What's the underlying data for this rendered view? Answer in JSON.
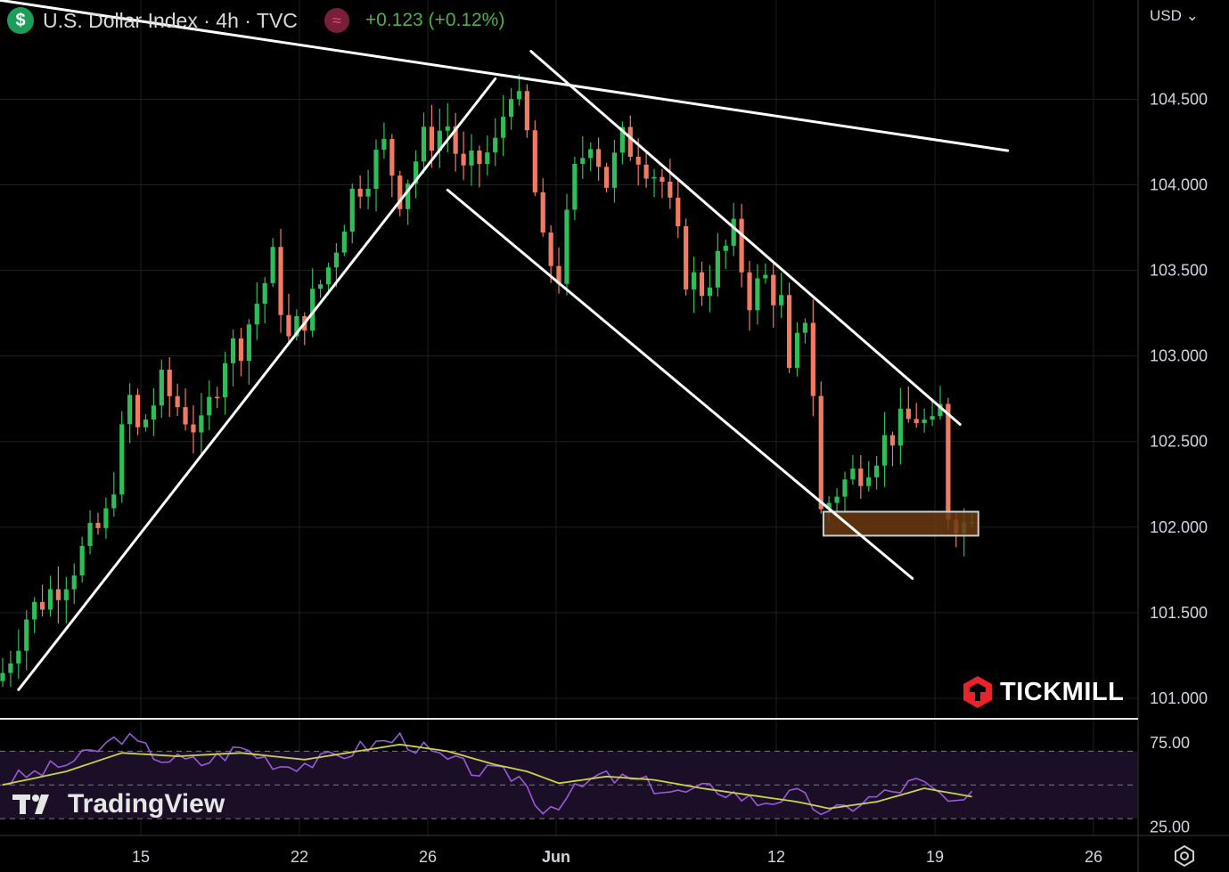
{
  "header": {
    "symbol_icon": "dollar-sign-icon",
    "symbol_glyph": "$",
    "title": "U.S. Dollar Index · 4h · TVC",
    "source_icon": "data-source-icon",
    "source_glyph": "≈",
    "change": "+0.123 (+0.12%)"
  },
  "currency_selector": "USD",
  "branding": {
    "broker": "TICKMILL",
    "platform": "TradingView"
  },
  "colors": {
    "up": "#2ebd59",
    "down": "#f07b62",
    "trendline": "#ffffff",
    "rsi": "#9b59d9",
    "rsi_ma": "#c9d34a",
    "zone_fill": "#6b3a12",
    "zone_border": "#cccccc",
    "rsi_band": "#1a0f26"
  },
  "chart_data": {
    "type": "candlestick",
    "timeframe": "4h",
    "y_axis": {
      "range": [
        100.88,
        105.08
      ],
      "ticks": [
        "104.500",
        "104.000",
        "103.500",
        "103.000",
        "102.500",
        "102.000",
        "101.500",
        "101.000"
      ]
    },
    "x_axis_labels": [
      "15",
      "22",
      "26",
      "Jun",
      "12",
      "19",
      "26"
    ],
    "path_points": [
      [
        0,
        101.15
      ],
      [
        3,
        101.48
      ],
      [
        8,
        101.72
      ],
      [
        13,
        102.05
      ],
      [
        16,
        102.75
      ],
      [
        17,
        102.55
      ],
      [
        20,
        102.82
      ],
      [
        25,
        102.55
      ],
      [
        28,
        103.02
      ],
      [
        30,
        103.08
      ],
      [
        34,
        103.55
      ],
      [
        36,
        103.08
      ],
      [
        39,
        103.32
      ],
      [
        41,
        103.52
      ],
      [
        44,
        103.95
      ],
      [
        48,
        104.22
      ],
      [
        50,
        103.95
      ],
      [
        53,
        104.25
      ],
      [
        56,
        104.35
      ],
      [
        58,
        104.05
      ],
      [
        62,
        104.22
      ],
      [
        64,
        104.6
      ],
      [
        66,
        104.28
      ],
      [
        68,
        103.62
      ],
      [
        70,
        103.48
      ],
      [
        72,
        104.05
      ],
      [
        74,
        104.3
      ],
      [
        76,
        104.02
      ],
      [
        78,
        104.25
      ],
      [
        80,
        104.2
      ],
      [
        83,
        104.02
      ],
      [
        86,
        103.48
      ],
      [
        88,
        103.4
      ],
      [
        90,
        103.55
      ],
      [
        92,
        103.7
      ],
      [
        94,
        103.35
      ],
      [
        96,
        103.45
      ],
      [
        98,
        103.3
      ],
      [
        99,
        102.85
      ],
      [
        100,
        103.05
      ],
      [
        101,
        103.25
      ],
      [
        102,
        102.8
      ],
      [
        103,
        102.08
      ],
      [
        105,
        102.22
      ],
      [
        108,
        102.35
      ],
      [
        110,
        102.45
      ],
      [
        112,
        102.55
      ],
      [
        115,
        102.65
      ],
      [
        117,
        102.55
      ],
      [
        118,
        102.68
      ],
      [
        119,
        102.1
      ],
      [
        121,
        102.02
      ],
      [
        122,
        102.12
      ]
    ],
    "trendlines": [
      {
        "name": "upper-long-resistance",
        "points": [
          [
            -0.5,
            105.08
          ],
          [
            126.5,
            104.2
          ]
        ]
      },
      {
        "name": "rising-support",
        "points": [
          [
            2.0,
            101.05
          ],
          [
            62.0,
            104.62
          ]
        ]
      },
      {
        "name": "channel-upper",
        "points": [
          [
            66.5,
            104.78
          ],
          [
            120.5,
            102.6
          ]
        ]
      },
      {
        "name": "channel-lower",
        "points": [
          [
            56.0,
            103.97
          ],
          [
            114.5,
            101.7
          ]
        ]
      }
    ],
    "support_zone": {
      "x_range": [
        103.3,
        122.8
      ],
      "y_range": [
        101.95,
        102.09
      ]
    },
    "rsi": {
      "ylim": [
        20,
        85
      ],
      "ticks": [
        "75.00",
        "25.00"
      ],
      "bands": [
        70,
        50,
        30
      ],
      "path_points": [
        [
          0,
          52
        ],
        [
          5,
          58
        ],
        [
          10,
          66
        ],
        [
          15,
          79
        ],
        [
          20,
          66
        ],
        [
          25,
          63
        ],
        [
          30,
          72
        ],
        [
          35,
          62
        ],
        [
          40,
          64
        ],
        [
          45,
          72
        ],
        [
          50,
          78
        ],
        [
          55,
          66
        ],
        [
          60,
          58
        ],
        [
          65,
          55
        ],
        [
          68,
          36
        ],
        [
          70,
          40
        ],
        [
          75,
          55
        ],
        [
          80,
          52
        ],
        [
          85,
          45
        ],
        [
          90,
          48
        ],
        [
          95,
          40
        ],
        [
          100,
          44
        ],
        [
          104,
          32
        ],
        [
          108,
          40
        ],
        [
          112,
          46
        ],
        [
          115,
          52
        ],
        [
          118,
          44
        ],
        [
          120,
          36
        ],
        [
          122,
          42
        ]
      ],
      "ma_points": [
        [
          0,
          50
        ],
        [
          8,
          58
        ],
        [
          15,
          69
        ],
        [
          22,
          67
        ],
        [
          30,
          69
        ],
        [
          38,
          65
        ],
        [
          46,
          71
        ],
        [
          50,
          74
        ],
        [
          56,
          70
        ],
        [
          62,
          62
        ],
        [
          66,
          58
        ],
        [
          70,
          51
        ],
        [
          76,
          55
        ],
        [
          82,
          53
        ],
        [
          88,
          48
        ],
        [
          94,
          44
        ],
        [
          100,
          40
        ],
        [
          104,
          36
        ],
        [
          110,
          40
        ],
        [
          116,
          48
        ],
        [
          122,
          43
        ]
      ]
    }
  }
}
